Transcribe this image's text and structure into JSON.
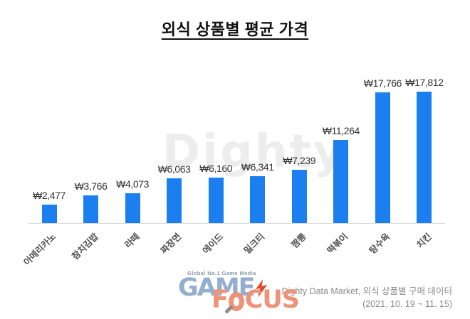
{
  "title": "외식 상품별 평균 가격",
  "watermark": "Dighty",
  "chart_data": {
    "type": "bar",
    "title": "외식 상품별 평균 가격",
    "categories": [
      "아메리카노",
      "참치김밥",
      "라떼",
      "짜장면",
      "에이드",
      "밀크티",
      "짬뽕",
      "떡볶이",
      "탕수육",
      "치킨"
    ],
    "values": [
      2477,
      3766,
      4073,
      6063,
      6160,
      6341,
      7239,
      11264,
      17766,
      17812
    ],
    "value_labels": [
      "₩2,477",
      "₩3,766",
      "₩4,073",
      "₩6,063",
      "₩6,160",
      "₩6,341",
      "₩7,239",
      "₩11,264",
      "₩17,766",
      "₩17,812"
    ],
    "xlabel": "",
    "ylabel": "",
    "ylim": [
      0,
      17812
    ],
    "grid": false,
    "legend": false,
    "bar_color": "#1b7ff0",
    "axis_line_color": "#d9d9d9",
    "currency": "KRW"
  },
  "logo": {
    "tagline": "Global No.1 Game Media",
    "line1": "GAME",
    "line2_prefix": "F",
    "line2_suffix": "CUS",
    "colors": {
      "game": "#93aece",
      "focus": "#ee9377",
      "bolt": "#e0492f",
      "tagline": "#8b99a6"
    }
  },
  "source": {
    "line1": "Dighty Data Market, 외식 상품별 구매 데이터",
    "line2": "(2021. 10. 19 ~ 11. 15)"
  }
}
